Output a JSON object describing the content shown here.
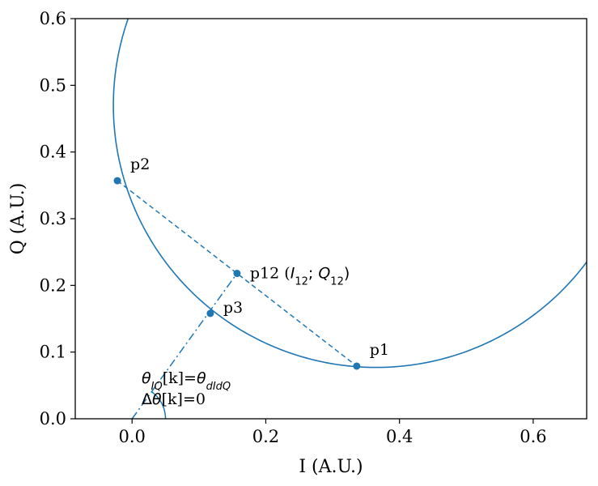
{
  "colors": {
    "series": "#1f77b4",
    "axes": "#000000",
    "background": "#ffffff"
  },
  "chart_data": {
    "type": "scatter",
    "xlabel": "I (A.U.)",
    "ylabel": "Q (A.U.)",
    "xlim": [
      -0.085,
      0.68
    ],
    "ylim": [
      0.0,
      0.6
    ],
    "grid": false,
    "x_ticks": [
      0.0,
      0.2,
      0.4,
      0.6
    ],
    "x_tick_labels": [
      "0.0",
      "0.2",
      "0.4",
      "0.6"
    ],
    "y_ticks": [
      0.0,
      0.1,
      0.2,
      0.3,
      0.4,
      0.5,
      0.6
    ],
    "y_tick_labels": [
      "0.0",
      "0.1",
      "0.2",
      "0.3",
      "0.4",
      "0.5",
      "0.6"
    ],
    "circle": {
      "center": [
        0.365,
        0.47
      ],
      "radius": 0.393
    },
    "points": [
      {
        "id": "p1",
        "label": "p1",
        "x": 0.336,
        "y": 0.079
      },
      {
        "id": "p2",
        "label": "p2",
        "x": -0.022,
        "y": 0.357
      },
      {
        "id": "p12",
        "label": "p12 (",
        "label_math": "I",
        "label_sub": "12",
        "label_sep": "; ",
        "label_math2": "Q",
        "label_sub2": "12",
        "label_end": ")",
        "x": 0.157,
        "y": 0.218
      },
      {
        "id": "p3",
        "label": "p3",
        "x": 0.117,
        "y": 0.158
      }
    ],
    "dashed_line": {
      "from": "p2",
      "to": "p1"
    },
    "dashdot_line": {
      "from": [
        0.0,
        0.0
      ],
      "to": [
        0.157,
        0.218
      ]
    },
    "angle_arc": {
      "center": [
        0.0,
        0.0
      ],
      "radius": 0.05
    },
    "annotation": {
      "line1": {
        "theta": "θ",
        "sub1": "IQ",
        "bracket": "[k]=",
        "theta2": "θ",
        "sub2": "dIdQ"
      },
      "line2": {
        "delta": "Δ",
        "theta": "θ",
        "rest": "[k]=0"
      }
    }
  }
}
